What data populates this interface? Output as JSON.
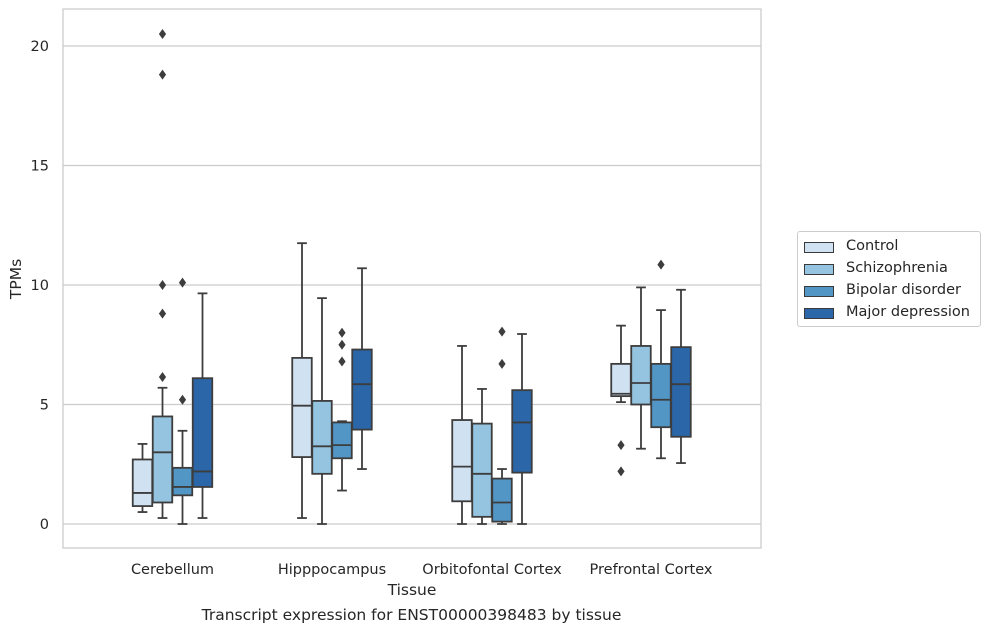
{
  "chart_data": {
    "type": "box",
    "title": "",
    "caption": "Transcript expression for ENST00000398483 by tissue",
    "xlabel": "Tissue",
    "ylabel": "TPMs",
    "ylim": [
      -1,
      21.6
    ],
    "yticks": [
      0,
      5,
      10,
      15,
      20
    ],
    "grid": "horizontal",
    "legend_placement": "outside-right",
    "categories": [
      "Cerebellum",
      "Hipppocampus",
      "Orbitofontal Cortex",
      "Prefrontal Cortex"
    ],
    "series": [
      {
        "name": "Control",
        "color": "#d0e1f2",
        "boxes": [
          {
            "whisker_low": 0.5,
            "q1": 0.75,
            "median": 1.3,
            "q3": 2.7,
            "whisker_high": 3.35,
            "outliers": []
          },
          {
            "whisker_low": 0.25,
            "q1": 2.8,
            "median": 4.95,
            "q3": 6.95,
            "whisker_high": 11.75,
            "outliers": []
          },
          {
            "whisker_low": 0.0,
            "q1": 0.95,
            "median": 2.4,
            "q3": 4.35,
            "whisker_high": 7.45,
            "outliers": []
          },
          {
            "whisker_low": 5.1,
            "q1": 5.35,
            "median": 5.45,
            "q3": 6.7,
            "whisker_high": 8.3,
            "outliers": [
              3.3,
              2.2
            ]
          }
        ]
      },
      {
        "name": "Schizophrenia",
        "color": "#94c4df",
        "boxes": [
          {
            "whisker_low": 0.25,
            "q1": 0.9,
            "median": 3.0,
            "q3": 4.5,
            "whisker_high": 5.7,
            "outliers": [
              10.0,
              8.8,
              6.15,
              20.5,
              18.8
            ]
          },
          {
            "whisker_low": 0.0,
            "q1": 2.1,
            "median": 3.25,
            "q3": 5.15,
            "whisker_high": 9.45,
            "outliers": []
          },
          {
            "whisker_low": 0.0,
            "q1": 0.3,
            "median": 2.1,
            "q3": 4.2,
            "whisker_high": 5.65,
            "outliers": []
          },
          {
            "whisker_low": 3.15,
            "q1": 5.0,
            "median": 5.9,
            "q3": 7.45,
            "whisker_high": 9.9,
            "outliers": []
          }
        ]
      },
      {
        "name": "Bipolar disorder",
        "color": "#5296c6",
        "boxes": [
          {
            "whisker_low": 0.0,
            "q1": 1.2,
            "median": 1.55,
            "q3": 2.35,
            "whisker_high": 3.9,
            "outliers": [
              10.1,
              5.2
            ]
          },
          {
            "whisker_low": 1.4,
            "q1": 2.75,
            "median": 3.3,
            "q3": 4.25,
            "whisker_high": 4.3,
            "outliers": [
              8.0,
              7.5,
              6.8
            ]
          },
          {
            "whisker_low": 0.0,
            "q1": 0.1,
            "median": 0.9,
            "q3": 1.9,
            "whisker_high": 2.3,
            "outliers": [
              8.05,
              6.7
            ]
          },
          {
            "whisker_low": 2.75,
            "q1": 4.05,
            "median": 5.2,
            "q3": 6.7,
            "whisker_high": 8.95,
            "outliers": [
              10.85
            ]
          }
        ]
      },
      {
        "name": "Major depression",
        "color": "#2a66a8",
        "boxes": [
          {
            "whisker_low": 0.25,
            "q1": 1.55,
            "median": 2.2,
            "q3": 6.1,
            "whisker_high": 9.65,
            "outliers": []
          },
          {
            "whisker_low": 2.3,
            "q1": 3.95,
            "median": 5.85,
            "q3": 7.3,
            "whisker_high": 10.7,
            "outliers": []
          },
          {
            "whisker_low": 0.0,
            "q1": 2.15,
            "median": 4.25,
            "q3": 5.6,
            "whisker_high": 7.95,
            "outliers": []
          },
          {
            "whisker_low": 2.55,
            "q1": 3.65,
            "median": 5.85,
            "q3": 7.4,
            "whisker_high": 9.8,
            "outliers": []
          }
        ]
      }
    ]
  }
}
